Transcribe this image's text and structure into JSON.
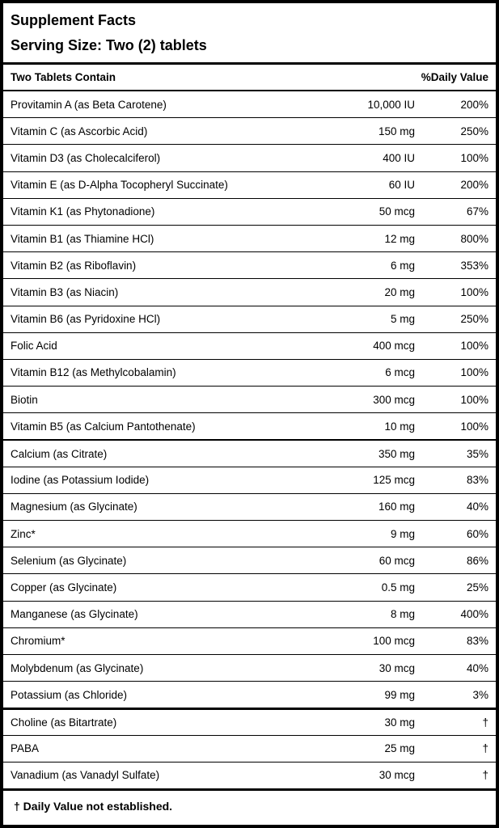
{
  "label": {
    "title": "Supplement Facts",
    "serving_size": "Serving Size: Two (2) tablets",
    "columns": {
      "left_header": "Two Tablets Contain",
      "right_header": "%Daily Value"
    },
    "footnote": "† Daily Value not established.",
    "colors": {
      "border": "#000000",
      "background": "#ffffff",
      "text": "#000000"
    },
    "rows": [
      {
        "name": "Provitamin A (as Beta Carotene)",
        "amount": "10,000 IU",
        "daily_value": "200%",
        "divider": "none"
      },
      {
        "name": "Vitamin C (as Ascorbic Acid)",
        "amount": "150 mg",
        "daily_value": "250%",
        "divider": "thin"
      },
      {
        "name": "Vitamin D3 (as Cholecalciferol)",
        "amount": "400 IU",
        "daily_value": "100%",
        "divider": "thin"
      },
      {
        "name": "Vitamin E (as D-Alpha Tocopheryl Succinate)",
        "amount": "60 IU",
        "daily_value": "200%",
        "divider": "thin"
      },
      {
        "name": "Vitamin K1 (as Phytonadione)",
        "amount": "50 mcg",
        "daily_value": "67%",
        "divider": "thin"
      },
      {
        "name": "Vitamin B1 (as Thiamine HCl)",
        "amount": "12 mg",
        "daily_value": "800%",
        "divider": "thin"
      },
      {
        "name": "Vitamin B2 (as Riboflavin)",
        "amount": "6 mg",
        "daily_value": "353%",
        "divider": "thin"
      },
      {
        "name": "Vitamin B3 (as Niacin)",
        "amount": "20 mg",
        "daily_value": "100%",
        "divider": "thin"
      },
      {
        "name": "Vitamin B6 (as Pyridoxine HCl)",
        "amount": "5 mg",
        "daily_value": "250%",
        "divider": "thin"
      },
      {
        "name": "Folic Acid",
        "amount": "400 mcg",
        "daily_value": "100%",
        "divider": "thin"
      },
      {
        "name": "Vitamin B12 (as Methylcobalamin)",
        "amount": "6 mcg",
        "daily_value": "100%",
        "divider": "thin"
      },
      {
        "name": "Biotin",
        "amount": "300 mcg",
        "daily_value": "100%",
        "divider": "thin"
      },
      {
        "name": "Vitamin B5 (as Calcium Pantothenate)",
        "amount": "10 mg",
        "daily_value": "100%",
        "divider": "thin"
      },
      {
        "name": "Calcium (as Citrate)",
        "amount": "350 mg",
        "daily_value": "35%",
        "divider": "medium"
      },
      {
        "name": "Iodine (as Potassium Iodide)",
        "amount": "125 mcg",
        "daily_value": "83%",
        "divider": "thin"
      },
      {
        "name": "Magnesium (as Glycinate)",
        "amount": "160 mg",
        "daily_value": "40%",
        "divider": "thin"
      },
      {
        "name": "Zinc*",
        "amount": "9 mg",
        "daily_value": "60%",
        "divider": "thin"
      },
      {
        "name": "Selenium (as Glycinate)",
        "amount": "60 mcg",
        "daily_value": "86%",
        "divider": "thin"
      },
      {
        "name": "Copper (as Glycinate)",
        "amount": "0.5 mg",
        "daily_value": "25%",
        "divider": "thin"
      },
      {
        "name": "Manganese (as Glycinate)",
        "amount": "8 mg",
        "daily_value": "400%",
        "divider": "thin"
      },
      {
        "name": "Chromium*",
        "amount": "100 mcg",
        "daily_value": "83%",
        "divider": "thin"
      },
      {
        "name": "Molybdenum (as Glycinate)",
        "amount": "30 mcg",
        "daily_value": "40%",
        "divider": "thin"
      },
      {
        "name": "Potassium (as Chloride)",
        "amount": "99 mg",
        "daily_value": "3%",
        "divider": "thin"
      },
      {
        "name": "Choline (as Bitartrate)",
        "amount": "30 mg",
        "daily_value": "†",
        "divider": "thick"
      },
      {
        "name": "PABA",
        "amount": "25 mg",
        "daily_value": "†",
        "divider": "thin"
      },
      {
        "name": "Vanadium (as Vanadyl Sulfate)",
        "amount": "30 mcg",
        "daily_value": "†",
        "divider": "thin"
      }
    ]
  }
}
